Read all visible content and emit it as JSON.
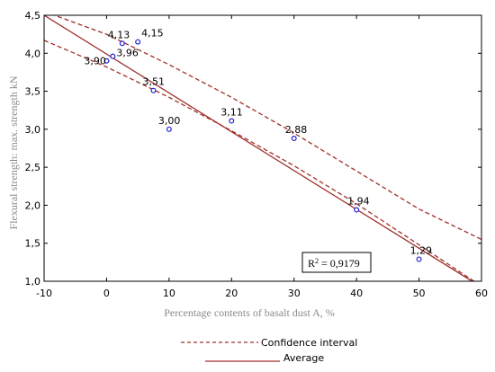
{
  "chart_data": {
    "type": "scatter",
    "title": "",
    "xlabel": "Percentage contents of basalt dust A, %",
    "ylabel": "Flexural strength: max. strength kN",
    "xlim": [
      -10,
      60
    ],
    "ylim": [
      1.0,
      4.5
    ],
    "xticks": [
      "-10",
      "0",
      "10",
      "20",
      "30",
      "40",
      "50",
      "60"
    ],
    "yticks": [
      "1,0",
      "1,5",
      "2,0",
      "2,5",
      "3,0",
      "3,5",
      "4,0",
      "4,5"
    ],
    "grid": false,
    "points": [
      {
        "x": 0,
        "y": 3.9,
        "label": "3,90"
      },
      {
        "x": 1,
        "y": 3.96,
        "label": "3,96"
      },
      {
        "x": 2.5,
        "y": 4.13,
        "label": "4,13"
      },
      {
        "x": 5,
        "y": 4.15,
        "label": "4,15"
      },
      {
        "x": 7.5,
        "y": 3.51,
        "label": "3,51"
      },
      {
        "x": 10,
        "y": 3.0,
        "label": "3,00"
      },
      {
        "x": 20,
        "y": 3.11,
        "label": "3,11"
      },
      {
        "x": 30,
        "y": 2.88,
        "label": "2,88"
      },
      {
        "x": 40,
        "y": 1.94,
        "label": "1,94"
      },
      {
        "x": 50,
        "y": 1.29,
        "label": "1,29"
      }
    ],
    "fit_line": {
      "name": "Average",
      "x": [
        -10,
        58.5
      ],
      "y": [
        4.5,
        1.0
      ]
    },
    "confidence_upper": {
      "name": "Confidence interval",
      "x": [
        -10,
        0,
        10,
        20,
        30,
        40,
        50,
        60
      ],
      "y": [
        4.55,
        4.25,
        3.85,
        3.42,
        2.95,
        2.45,
        1.95,
        1.55
      ]
    },
    "confidence_lower": {
      "name": "Confidence interval",
      "x": [
        -10,
        0,
        10,
        20,
        30,
        40,
        50,
        58.8
      ],
      "y": [
        4.17,
        3.82,
        3.42,
        2.98,
        2.52,
        2.02,
        1.48,
        1.0
      ]
    },
    "annotation": {
      "r2_label": "R",
      "r2_sup": "2",
      "r2_value": " = 0,9179"
    },
    "legend": {
      "placement": "bottom",
      "items": [
        {
          "label": "Confidence interval",
          "style": "dashed"
        },
        {
          "label": "Average",
          "style": "solid"
        }
      ]
    },
    "colors": {
      "line": "#a0302a",
      "point": "#1f1fd0",
      "axis": "#000000",
      "axis_title": "#8a8a8a"
    }
  }
}
